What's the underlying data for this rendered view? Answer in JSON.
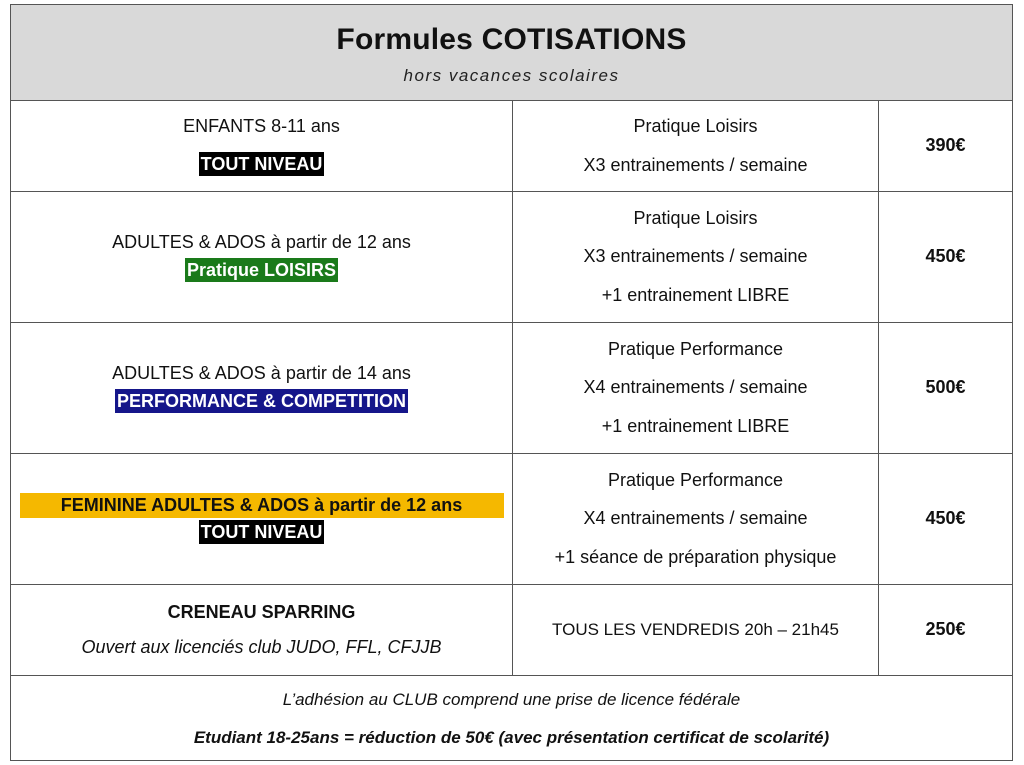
{
  "header": {
    "title": "Formules COTISATIONS",
    "subtitle": "hors vacances scolaires"
  },
  "rows": [
    {
      "audience": "ENFANTS 8-11 ans",
      "level_badge": "TOUT NIVEAU",
      "practice": [
        "Pratique Loisirs",
        "X3 entrainements / semaine"
      ],
      "price": "390€"
    },
    {
      "audience": "ADULTES & ADOS à partir de 12 ans",
      "level_badge": "Pratique LOISIRS",
      "practice": [
        "Pratique Loisirs",
        "X3 entrainements / semaine",
        "+1 entrainement LIBRE"
      ],
      "price": "450€"
    },
    {
      "audience": "ADULTES & ADOS à partir de 14 ans",
      "level_badge": "PERFORMANCE & COMPETITION",
      "practice": [
        "Pratique Performance",
        "X4 entrainements / semaine",
        "+1 entrainement LIBRE"
      ],
      "price": "500€"
    },
    {
      "audience": "FEMININE ADULTES & ADOS à partir de 12 ans",
      "level_badge": "TOUT NIVEAU",
      "practice": [
        "Pratique Performance",
        "X4 entrainements / semaine",
        "+1 séance de préparation physique"
      ],
      "price": "450€"
    },
    {
      "audience": "CRENEAU SPARRING",
      "note": "Ouvert aux licenciés club JUDO, FFL, CFJJB",
      "practice": [
        "TOUS LES VENDREDIS 20h – 21h45"
      ],
      "price": "250€"
    }
  ],
  "footer": {
    "line1": "L’adhésion au CLUB comprend une prise de licence fédérale",
    "line2": "Etudiant 18-25ans = réduction de 50€ (avec présentation certificat de scolarité)"
  },
  "colors": {
    "header_bg": "#d9d9d9",
    "badge_black": "#000000",
    "badge_green": "#1a7a1a",
    "badge_blue": "#15168a",
    "highlight_orange": "#f5b800"
  }
}
